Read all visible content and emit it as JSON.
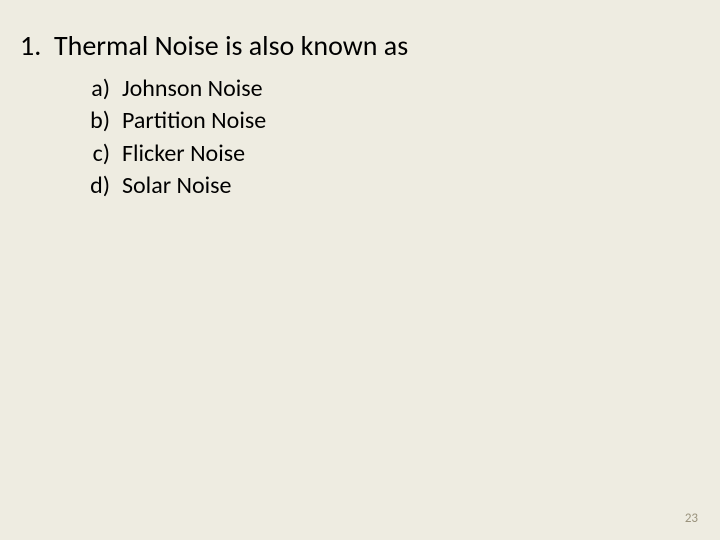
{
  "background_color": "#eeece1",
  "text_color": "#000000",
  "page_number_color": "#9a937d",
  "font_family": "Calibri, 'Segoe UI', Arial, sans-serif",
  "question": {
    "number": "1.",
    "text": "Thermal Noise is also known as",
    "fontsize_pt": 28
  },
  "options": [
    {
      "label": "a)",
      "text": "Johnson Noise"
    },
    {
      "label": "b)",
      "text": "Partition Noise"
    },
    {
      "label": "c)",
      "text": "Flicker Noise"
    },
    {
      "label": "d)",
      "text": "Solar Noise"
    }
  ],
  "option_fontsize_pt": 24,
  "page_number": "23"
}
